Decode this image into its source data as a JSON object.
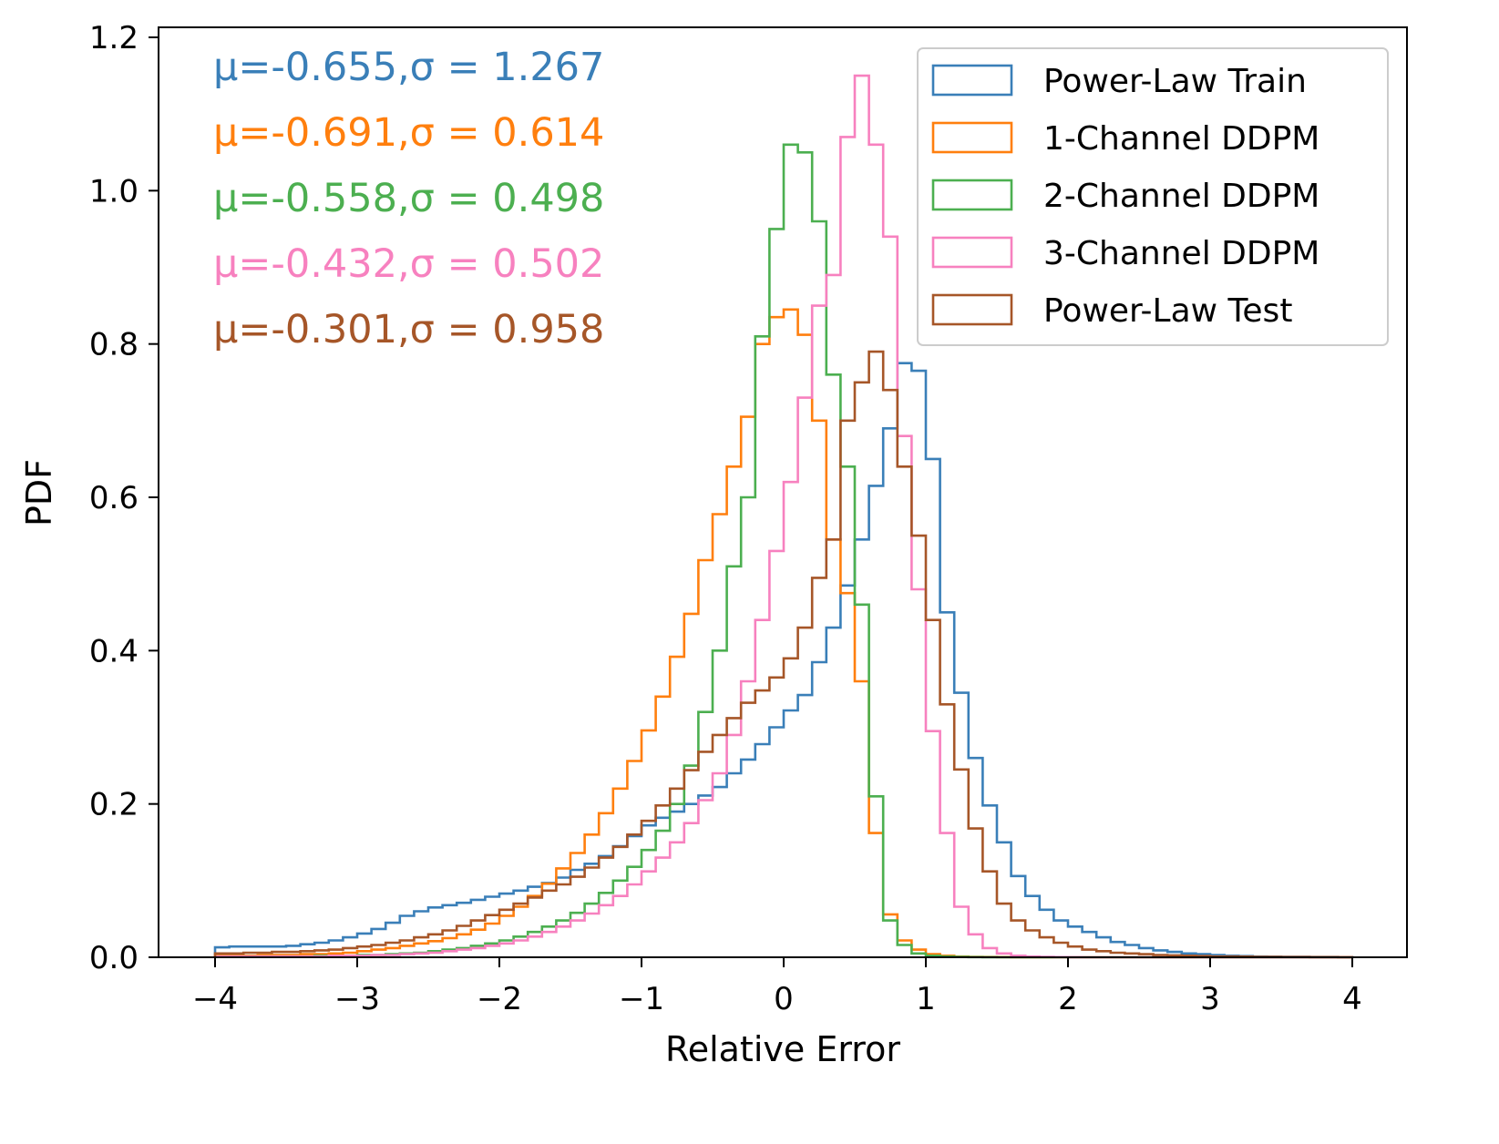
{
  "chart_data": {
    "type": "histogram",
    "title": "",
    "xlabel": "Relative Error",
    "ylabel": "PDF",
    "xlim": [
      -4.4,
      4.4
    ],
    "ylim": [
      0,
      1.21
    ],
    "xticks": [
      -4,
      -3,
      -2,
      -1,
      0,
      1,
      2,
      3,
      4
    ],
    "xtick_labels": [
      "−4",
      "−3",
      "−2",
      "−1",
      "0",
      "1",
      "2",
      "3",
      "4"
    ],
    "yticks": [
      0.0,
      0.2,
      0.4,
      0.6,
      0.8,
      1.0,
      1.2
    ],
    "ytick_labels": [
      "0.0",
      "0.2",
      "0.4",
      "0.6",
      "0.8",
      "1.0",
      "1.2"
    ],
    "grid": false,
    "legend_position": "top-right",
    "bin_start": -4.0,
    "bin_width": 0.1,
    "series": [
      {
        "name": "Power-Law Train",
        "color": "#3a7fb8",
        "stats_label": "μ=-0.655,σ = 1.267",
        "mu": -0.655,
        "sigma": 1.267,
        "values": [
          0.013,
          0.014,
          0.014,
          0.014,
          0.014,
          0.015,
          0.017,
          0.019,
          0.022,
          0.026,
          0.031,
          0.037,
          0.045,
          0.054,
          0.06,
          0.065,
          0.068,
          0.071,
          0.075,
          0.079,
          0.083,
          0.087,
          0.092,
          0.097,
          0.104,
          0.114,
          0.122,
          0.132,
          0.145,
          0.158,
          0.172,
          0.182,
          0.19,
          0.2,
          0.211,
          0.222,
          0.24,
          0.258,
          0.278,
          0.3,
          0.322,
          0.342,
          0.385,
          0.43,
          0.485,
          0.545,
          0.615,
          0.69,
          0.775,
          0.765,
          0.65,
          0.45,
          0.345,
          0.26,
          0.198,
          0.15,
          0.106,
          0.08,
          0.062,
          0.048,
          0.04,
          0.033,
          0.026,
          0.02,
          0.016,
          0.012,
          0.009,
          0.007,
          0.005,
          0.004,
          0.003,
          0.002,
          0.0015,
          0.001,
          0.0008,
          0.0006,
          0.0005,
          0.0004,
          0.0003,
          0.0002
        ]
      },
      {
        "name": "1-Channel DDPM",
        "color": "#ff7f0e",
        "stats_label": "μ=-0.691,σ = 0.614",
        "mu": -0.691,
        "sigma": 0.614,
        "values": [
          0.002,
          0.002,
          0.002,
          0.003,
          0.003,
          0.003,
          0.004,
          0.004,
          0.005,
          0.006,
          0.008,
          0.01,
          0.012,
          0.015,
          0.018,
          0.021,
          0.025,
          0.03,
          0.036,
          0.044,
          0.054,
          0.066,
          0.08,
          0.096,
          0.116,
          0.136,
          0.16,
          0.188,
          0.22,
          0.256,
          0.296,
          0.34,
          0.392,
          0.448,
          0.518,
          0.578,
          0.64,
          0.705,
          0.8,
          0.835,
          0.845,
          0.812,
          0.7,
          0.545,
          0.475,
          0.36,
          0.162,
          0.056,
          0.022,
          0.01,
          0.004,
          0.002,
          0.001,
          0.0005,
          0.0003,
          0.0002,
          0.0001,
          0.0001,
          0,
          0,
          0,
          0,
          0,
          0,
          0,
          0,
          0,
          0,
          0,
          0,
          0,
          0,
          0,
          0,
          0,
          0,
          0,
          0,
          0,
          0
        ]
      },
      {
        "name": "2-Channel DDPM",
        "color": "#4caf50",
        "stats_label": "μ=-0.558,σ = 0.498",
        "mu": -0.558,
        "sigma": 0.498,
        "values": [
          0.001,
          0.001,
          0.001,
          0.001,
          0.001,
          0.001,
          0.001,
          0.002,
          0.002,
          0.002,
          0.003,
          0.003,
          0.004,
          0.005,
          0.006,
          0.008,
          0.01,
          0.012,
          0.015,
          0.018,
          0.022,
          0.027,
          0.033,
          0.04,
          0.048,
          0.058,
          0.07,
          0.084,
          0.1,
          0.118,
          0.14,
          0.165,
          0.2,
          0.25,
          0.32,
          0.4,
          0.51,
          0.6,
          0.81,
          0.95,
          1.06,
          1.05,
          0.96,
          0.76,
          0.64,
          0.46,
          0.21,
          0.048,
          0.016,
          0.005,
          0.002,
          0.001,
          0.0005,
          0.0002,
          0.0001,
          0,
          0,
          0,
          0,
          0,
          0,
          0,
          0,
          0,
          0,
          0,
          0,
          0,
          0,
          0,
          0,
          0,
          0,
          0,
          0,
          0,
          0,
          0,
          0,
          0
        ]
      },
      {
        "name": "3-Channel DDPM",
        "color": "#f781bf",
        "stats_label": "μ=-0.432,σ = 0.502",
        "mu": -0.432,
        "sigma": 0.502,
        "values": [
          0.001,
          0.001,
          0.001,
          0.001,
          0.001,
          0.001,
          0.001,
          0.001,
          0.002,
          0.002,
          0.002,
          0.003,
          0.003,
          0.004,
          0.005,
          0.006,
          0.008,
          0.01,
          0.012,
          0.015,
          0.018,
          0.022,
          0.027,
          0.033,
          0.04,
          0.048,
          0.057,
          0.068,
          0.08,
          0.095,
          0.112,
          0.13,
          0.15,
          0.175,
          0.205,
          0.24,
          0.29,
          0.36,
          0.44,
          0.53,
          0.62,
          0.73,
          0.85,
          0.89,
          1.07,
          1.15,
          1.06,
          0.94,
          0.68,
          0.48,
          0.295,
          0.162,
          0.066,
          0.03,
          0.012,
          0.005,
          0.002,
          0.001,
          0.0005,
          0.0002,
          0.0001,
          0,
          0,
          0,
          0,
          0,
          0,
          0,
          0,
          0,
          0,
          0,
          0,
          0,
          0,
          0,
          0,
          0,
          0,
          0
        ]
      },
      {
        "name": "Power-Law Test",
        "color": "#a65628",
        "stats_label": "μ=-0.301,σ = 0.958",
        "mu": -0.301,
        "sigma": 0.958,
        "values": [
          0.005,
          0.005,
          0.006,
          0.006,
          0.007,
          0.007,
          0.008,
          0.009,
          0.01,
          0.012,
          0.014,
          0.016,
          0.019,
          0.022,
          0.026,
          0.03,
          0.035,
          0.041,
          0.048,
          0.055,
          0.062,
          0.07,
          0.078,
          0.087,
          0.095,
          0.105,
          0.117,
          0.13,
          0.144,
          0.16,
          0.178,
          0.198,
          0.22,
          0.244,
          0.268,
          0.29,
          0.312,
          0.332,
          0.348,
          0.365,
          0.39,
          0.43,
          0.495,
          0.545,
          0.7,
          0.75,
          0.79,
          0.74,
          0.64,
          0.55,
          0.44,
          0.33,
          0.245,
          0.168,
          0.112,
          0.07,
          0.048,
          0.035,
          0.026,
          0.019,
          0.014,
          0.01,
          0.008,
          0.006,
          0.005,
          0.004,
          0.003,
          0.0025,
          0.002,
          0.0015,
          0.001,
          0.001,
          0.0008,
          0.0006,
          0.0005,
          0.0004,
          0.0003,
          0.0002,
          0.0002,
          0.0001
        ]
      }
    ]
  }
}
